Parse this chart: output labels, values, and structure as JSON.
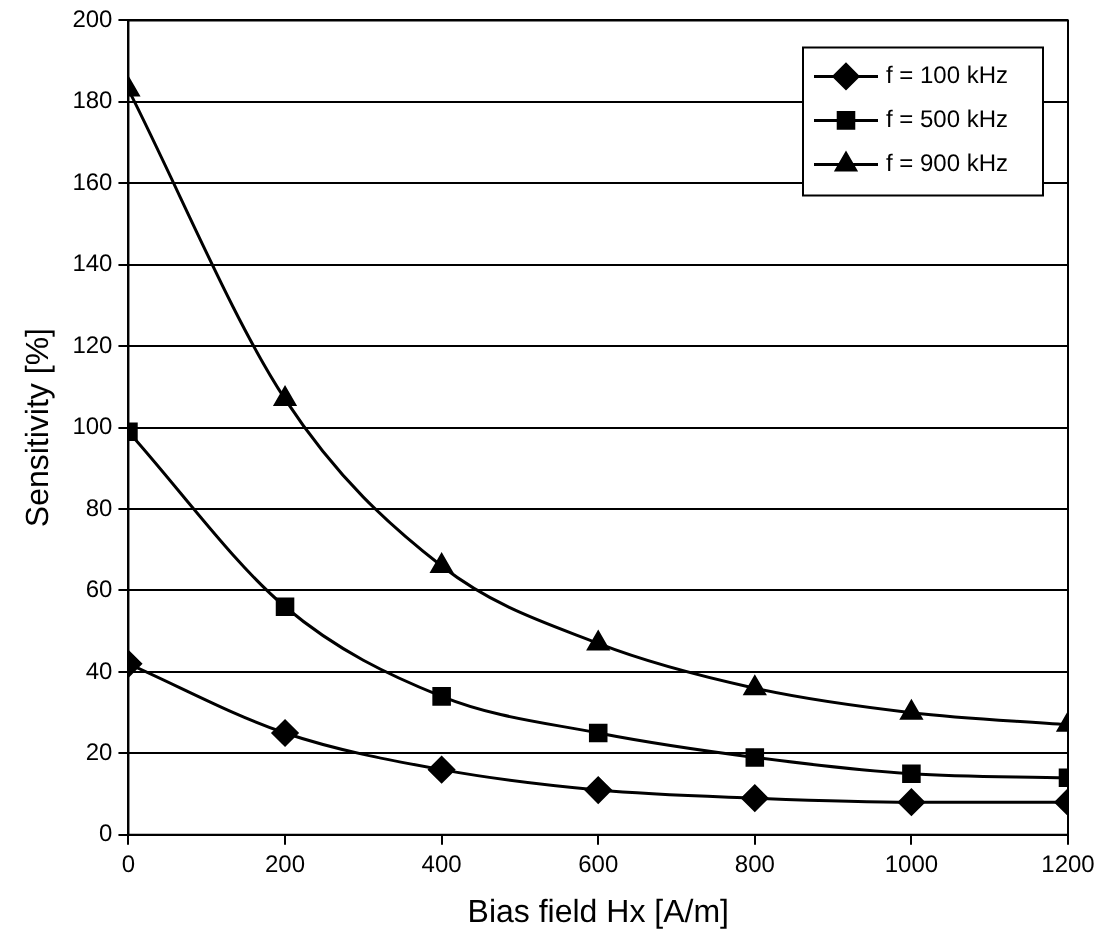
{
  "chart_data": {
    "type": "line",
    "xlabel": "Bias field Hx [A/m]",
    "ylabel": "Sensitivity [%]",
    "x": [
      0,
      200,
      400,
      600,
      800,
      1000,
      1200
    ],
    "xlim": [
      0,
      1200
    ],
    "xticks": [
      0,
      200,
      400,
      600,
      800,
      1000,
      1200
    ],
    "ylim": [
      0,
      200
    ],
    "yticks": [
      0,
      20,
      40,
      60,
      80,
      100,
      120,
      140,
      160,
      180,
      200
    ],
    "grid": "y",
    "legend": "top right",
    "line_style": "solid",
    "series": [
      {
        "name": "f = 100 kHz",
        "color": "#000000",
        "marker": "diamond",
        "values": [
          42,
          25,
          16,
          11,
          9,
          8,
          8
        ]
      },
      {
        "name": "f = 500 kHz",
        "color": "#000000",
        "marker": "square",
        "values": [
          99,
          56,
          34,
          25,
          19,
          15,
          14
        ]
      },
      {
        "name": "f = 900 kHz",
        "color": "#000000",
        "marker": "triangle",
        "values": [
          183,
          107,
          66,
          47,
          36,
          30,
          27
        ]
      }
    ]
  }
}
